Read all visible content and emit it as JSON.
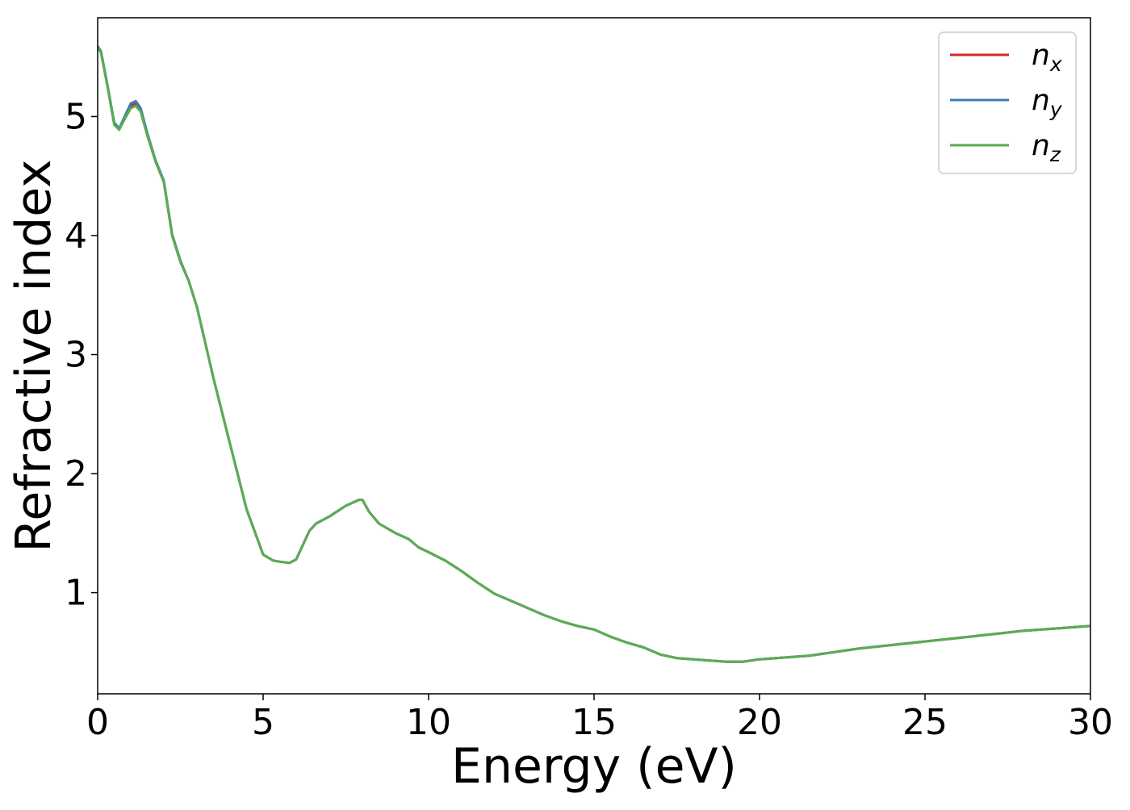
{
  "chart_data": {
    "type": "line",
    "xlabel": "Energy (eV)",
    "ylabel": "Refractive index",
    "xlim": [
      0,
      30
    ],
    "ylim": [
      0.15,
      5.83
    ],
    "xticks": [
      0,
      5,
      10,
      15,
      20,
      25,
      30
    ],
    "yticks": [
      1,
      2,
      3,
      4,
      5
    ],
    "grid": false,
    "legend_position": "top-right",
    "series": [
      {
        "name": "n_x",
        "legend_main": "n",
        "legend_sub": "x",
        "color": "#d62728",
        "x": [
          0,
          0.1,
          0.3,
          0.5,
          0.65,
          0.8,
          1.0,
          1.15,
          1.3,
          1.5,
          1.75,
          2.0,
          2.25,
          2.5,
          2.75,
          3.0,
          3.5,
          4.0,
          4.5,
          5.0,
          5.3,
          5.5,
          5.8,
          6.0,
          6.2,
          6.4,
          6.6,
          7.0,
          7.5,
          7.9,
          8.0,
          8.2,
          8.5,
          9.0,
          9.4,
          9.7,
          10.0,
          10.5,
          11.0,
          11.5,
          12.0,
          12.5,
          13.0,
          13.5,
          14.0,
          14.5,
          15.0,
          15.5,
          16.0,
          16.5,
          17.0,
          17.5,
          18.0,
          18.5,
          19.0,
          19.3,
          19.5,
          20.0,
          20.5,
          21.0,
          21.5,
          22.0,
          23.0,
          24.0,
          25.0,
          26.0,
          27.0,
          28.0,
          29.0,
          30.0
        ],
        "y": [
          5.58,
          5.54,
          5.25,
          4.94,
          4.89,
          4.98,
          5.09,
          5.11,
          5.05,
          4.85,
          4.62,
          4.45,
          4.0,
          3.78,
          3.62,
          3.4,
          2.8,
          2.25,
          1.7,
          1.32,
          1.27,
          1.26,
          1.25,
          1.28,
          1.4,
          1.52,
          1.58,
          1.64,
          1.73,
          1.78,
          1.78,
          1.68,
          1.58,
          1.5,
          1.45,
          1.38,
          1.34,
          1.27,
          1.18,
          1.08,
          0.99,
          0.93,
          0.87,
          0.81,
          0.76,
          0.72,
          0.69,
          0.63,
          0.58,
          0.54,
          0.48,
          0.45,
          0.44,
          0.43,
          0.42,
          0.42,
          0.42,
          0.44,
          0.45,
          0.46,
          0.47,
          0.49,
          0.53,
          0.56,
          0.59,
          0.62,
          0.65,
          0.68,
          0.7,
          0.72
        ]
      },
      {
        "name": "n_y",
        "legend_main": "n",
        "legend_sub": "y",
        "color": "#3e7bb0",
        "x": [
          0,
          0.1,
          0.3,
          0.5,
          0.65,
          0.8,
          1.0,
          1.15,
          1.3,
          1.5,
          1.75,
          2.0,
          2.25,
          2.5,
          2.75,
          3.0,
          3.5,
          4.0,
          4.5,
          5.0,
          5.3,
          5.5,
          5.8,
          6.0,
          6.2,
          6.4,
          6.6,
          7.0,
          7.5,
          7.9,
          8.0,
          8.2,
          8.5,
          9.0,
          9.4,
          9.7,
          10.0,
          10.5,
          11.0,
          11.5,
          12.0,
          12.5,
          13.0,
          13.5,
          14.0,
          14.5,
          15.0,
          15.5,
          16.0,
          16.5,
          17.0,
          17.5,
          18.0,
          18.5,
          19.0,
          19.3,
          19.5,
          20.0,
          20.5,
          21.0,
          21.5,
          22.0,
          23.0,
          24.0,
          25.0,
          26.0,
          27.0,
          28.0,
          29.0,
          30.0
        ],
        "y": [
          5.59,
          5.55,
          5.26,
          4.95,
          4.9,
          4.99,
          5.11,
          5.13,
          5.07,
          4.86,
          4.63,
          4.46,
          4.01,
          3.79,
          3.62,
          3.4,
          2.8,
          2.25,
          1.7,
          1.32,
          1.27,
          1.26,
          1.25,
          1.28,
          1.4,
          1.52,
          1.58,
          1.64,
          1.73,
          1.78,
          1.78,
          1.68,
          1.58,
          1.5,
          1.45,
          1.38,
          1.34,
          1.27,
          1.18,
          1.08,
          0.99,
          0.93,
          0.87,
          0.81,
          0.76,
          0.72,
          0.69,
          0.63,
          0.58,
          0.54,
          0.48,
          0.45,
          0.44,
          0.43,
          0.42,
          0.42,
          0.42,
          0.44,
          0.45,
          0.46,
          0.47,
          0.49,
          0.53,
          0.56,
          0.59,
          0.62,
          0.65,
          0.68,
          0.7,
          0.72
        ]
      },
      {
        "name": "n_z",
        "legend_main": "n",
        "legend_sub": "z",
        "color": "#5aad52",
        "x": [
          0,
          0.1,
          0.3,
          0.5,
          0.65,
          0.8,
          1.0,
          1.15,
          1.3,
          1.5,
          1.75,
          2.0,
          2.25,
          2.5,
          2.75,
          3.0,
          3.5,
          4.0,
          4.5,
          5.0,
          5.3,
          5.5,
          5.8,
          6.0,
          6.2,
          6.4,
          6.6,
          7.0,
          7.5,
          7.9,
          8.0,
          8.2,
          8.5,
          9.0,
          9.4,
          9.7,
          10.0,
          10.5,
          11.0,
          11.5,
          12.0,
          12.5,
          13.0,
          13.5,
          14.0,
          14.5,
          15.0,
          15.5,
          16.0,
          16.5,
          17.0,
          17.5,
          18.0,
          18.5,
          19.0,
          19.3,
          19.5,
          20.0,
          20.5,
          21.0,
          21.5,
          22.0,
          23.0,
          24.0,
          25.0,
          26.0,
          27.0,
          28.0,
          29.0,
          30.0
        ],
        "y": [
          5.58,
          5.54,
          5.25,
          4.93,
          4.89,
          4.97,
          5.07,
          5.09,
          5.04,
          4.84,
          4.62,
          4.45,
          4.0,
          3.78,
          3.62,
          3.4,
          2.8,
          2.25,
          1.7,
          1.32,
          1.27,
          1.26,
          1.25,
          1.28,
          1.4,
          1.52,
          1.58,
          1.64,
          1.73,
          1.78,
          1.78,
          1.68,
          1.58,
          1.5,
          1.45,
          1.38,
          1.34,
          1.27,
          1.18,
          1.08,
          0.99,
          0.93,
          0.87,
          0.81,
          0.76,
          0.72,
          0.69,
          0.63,
          0.58,
          0.54,
          0.48,
          0.45,
          0.44,
          0.43,
          0.42,
          0.42,
          0.42,
          0.44,
          0.45,
          0.46,
          0.47,
          0.49,
          0.53,
          0.56,
          0.59,
          0.62,
          0.65,
          0.68,
          0.7,
          0.72
        ]
      }
    ]
  }
}
